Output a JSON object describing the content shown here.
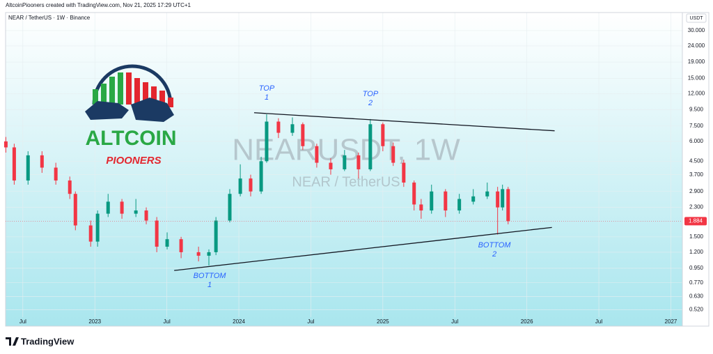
{
  "header": {
    "credit": "AltcoinPiooners created with TradingView.com, Nov 21, 2025 17:29 UTC+1",
    "symbol": "NEAR / TetherUS · 1W · Binance",
    "currency": "USDT"
  },
  "watermark": {
    "title": "NEARUSDT, 1W",
    "subtitle": "NEAR / TetherUS"
  },
  "logo": {
    "title": "ALTCOIN",
    "subtitle": "PIOONERS"
  },
  "footer": {
    "brand": "TradingView"
  },
  "chart_data": {
    "type": "candlestick",
    "log_scale": true,
    "grid": true,
    "up_color": "#089981",
    "down_color": "#f23645",
    "xlim": [
      2022.38,
      2027.08
    ],
    "xticks": [
      {
        "value": 2022.5,
        "label": "Jul"
      },
      {
        "value": 2023,
        "label": "2023"
      },
      {
        "value": 2023.5,
        "label": "Jul"
      },
      {
        "value": 2024,
        "label": "2024"
      },
      {
        "value": 2024.5,
        "label": "Jul"
      },
      {
        "value": 2025,
        "label": "2025"
      },
      {
        "value": 2025.5,
        "label": "Jul"
      },
      {
        "value": 2026,
        "label": "2026"
      },
      {
        "value": 2026.5,
        "label": "Jul"
      },
      {
        "value": 2027,
        "label": "2027"
      }
    ],
    "ylim": [
      0.41,
      39
    ],
    "yticks": [
      {
        "value": 30,
        "label": "30.000"
      },
      {
        "value": 24,
        "label": "24.000"
      },
      {
        "value": 19,
        "label": "19.000"
      },
      {
        "value": 15,
        "label": "15.000"
      },
      {
        "value": 12,
        "label": "12.000"
      },
      {
        "value": 9.5,
        "label": "9.500"
      },
      {
        "value": 7.5,
        "label": "7.500"
      },
      {
        "value": 6,
        "label": "6.000"
      },
      {
        "value": 4.5,
        "label": "4.500"
      },
      {
        "value": 3.7,
        "label": "3.700"
      },
      {
        "value": 2.9,
        "label": "2.900"
      },
      {
        "value": 2.3,
        "label": "2.300"
      },
      {
        "value": 1.5,
        "label": "1.500"
      },
      {
        "value": 1.2,
        "label": "1.200"
      },
      {
        "value": 0.95,
        "label": "0.950"
      },
      {
        "value": 0.77,
        "label": "0.770"
      },
      {
        "value": 0.63,
        "label": "0.630"
      },
      {
        "value": 0.52,
        "label": "0.520"
      }
    ],
    "candles": [
      {
        "x": 2022.382,
        "open": 6.0,
        "high": 6.4,
        "low": 5.1,
        "close": 5.5
      },
      {
        "x": 2022.44,
        "open": 5.5,
        "high": 5.8,
        "low": 3.2,
        "close": 3.4
      },
      {
        "x": 2022.536,
        "open": 3.4,
        "high": 5.2,
        "low": 3.2,
        "close": 4.9
      },
      {
        "x": 2022.633,
        "open": 4.9,
        "high": 5.2,
        "low": 3.8,
        "close": 4.1
      },
      {
        "x": 2022.729,
        "open": 4.1,
        "high": 4.4,
        "low": 3.2,
        "close": 3.4
      },
      {
        "x": 2022.826,
        "open": 3.4,
        "high": 3.6,
        "low": 2.6,
        "close": 2.8
      },
      {
        "x": 2022.865,
        "open": 2.8,
        "high": 2.9,
        "low": 1.65,
        "close": 1.77
      },
      {
        "x": 2022.971,
        "open": 1.77,
        "high": 1.9,
        "low": 1.3,
        "close": 1.4
      },
      {
        "x": 2023.019,
        "open": 1.4,
        "high": 2.2,
        "low": 1.3,
        "close": 2.1
      },
      {
        "x": 2023.092,
        "open": 2.1,
        "high": 2.8,
        "low": 2.0,
        "close": 2.5
      },
      {
        "x": 2023.188,
        "open": 2.5,
        "high": 2.6,
        "low": 1.95,
        "close": 2.1
      },
      {
        "x": 2023.285,
        "open": 2.1,
        "high": 2.6,
        "low": 2.0,
        "close": 2.2
      },
      {
        "x": 2023.357,
        "open": 2.2,
        "high": 2.3,
        "low": 1.8,
        "close": 1.9
      },
      {
        "x": 2023.43,
        "open": 1.9,
        "high": 2.0,
        "low": 1.2,
        "close": 1.3
      },
      {
        "x": 2023.502,
        "open": 1.3,
        "high": 1.6,
        "low": 1.25,
        "close": 1.45
      },
      {
        "x": 2023.599,
        "open": 1.45,
        "high": 1.5,
        "low": 1.1,
        "close": 1.2
      },
      {
        "x": 2023.72,
        "open": 1.2,
        "high": 1.3,
        "low": 1.05,
        "close": 1.14
      },
      {
        "x": 2023.792,
        "open": 1.14,
        "high": 1.25,
        "low": 0.99,
        "close": 1.2
      },
      {
        "x": 2023.841,
        "open": 1.2,
        "high": 2.0,
        "low": 1.15,
        "close": 1.9
      },
      {
        "x": 2023.937,
        "open": 1.9,
        "high": 3.0,
        "low": 1.85,
        "close": 2.8
      },
      {
        "x": 2024.01,
        "open": 2.8,
        "high": 4.3,
        "low": 2.7,
        "close": 3.5
      },
      {
        "x": 2024.082,
        "open": 3.5,
        "high": 3.7,
        "low": 2.7,
        "close": 2.9
      },
      {
        "x": 2024.155,
        "open": 2.9,
        "high": 4.8,
        "low": 2.8,
        "close": 4.5
      },
      {
        "x": 2024.193,
        "open": 4.5,
        "high": 8.9,
        "low": 4.4,
        "close": 8.0
      },
      {
        "x": 2024.275,
        "open": 8.0,
        "high": 8.4,
        "low": 6.3,
        "close": 6.8
      },
      {
        "x": 2024.372,
        "open": 6.8,
        "high": 8.5,
        "low": 6.5,
        "close": 7.7
      },
      {
        "x": 2024.444,
        "open": 7.7,
        "high": 7.9,
        "low": 5.3,
        "close": 5.6
      },
      {
        "x": 2024.541,
        "open": 5.6,
        "high": 5.8,
        "low": 4.1,
        "close": 4.4
      },
      {
        "x": 2024.638,
        "open": 4.4,
        "high": 4.7,
        "low": 3.7,
        "close": 4.0
      },
      {
        "x": 2024.734,
        "open": 4.0,
        "high": 5.3,
        "low": 3.9,
        "close": 4.9
      },
      {
        "x": 2024.831,
        "open": 4.9,
        "high": 5.1,
        "low": 3.5,
        "close": 4.0
      },
      {
        "x": 2024.913,
        "open": 4.0,
        "high": 8.3,
        "low": 3.9,
        "close": 7.7
      },
      {
        "x": 2025.0,
        "open": 7.7,
        "high": 7.9,
        "low": 5.2,
        "close": 5.6
      },
      {
        "x": 2025.072,
        "open": 5.6,
        "high": 5.9,
        "low": 4.2,
        "close": 4.4
      },
      {
        "x": 2025.145,
        "open": 4.4,
        "high": 4.6,
        "low": 3.1,
        "close": 3.3
      },
      {
        "x": 2025.217,
        "open": 3.3,
        "high": 3.4,
        "low": 2.2,
        "close": 2.4
      },
      {
        "x": 2025.266,
        "open": 2.4,
        "high": 2.6,
        "low": 1.95,
        "close": 2.2
      },
      {
        "x": 2025.338,
        "open": 2.2,
        "high": 3.2,
        "low": 2.1,
        "close": 2.9
      },
      {
        "x": 2025.435,
        "open": 2.9,
        "high": 3.0,
        "low": 2.0,
        "close": 2.2
      },
      {
        "x": 2025.531,
        "open": 2.2,
        "high": 2.8,
        "low": 2.1,
        "close": 2.6
      },
      {
        "x": 2025.628,
        "open": 2.5,
        "high": 3.0,
        "low": 2.4,
        "close": 2.7
      },
      {
        "x": 2025.725,
        "open": 2.7,
        "high": 3.3,
        "low": 2.6,
        "close": 2.9
      },
      {
        "x": 2025.797,
        "open": 2.9,
        "high": 3.1,
        "low": 1.55,
        "close": 2.3
      },
      {
        "x": 2025.831,
        "open": 2.3,
        "high": 3.2,
        "low": 2.2,
        "close": 3.0
      },
      {
        "x": 2025.87,
        "open": 3.0,
        "high": 3.1,
        "low": 1.8,
        "close": 1.884
      }
    ],
    "trendlines": [
      {
        "x": [
          2024.106,
          2026.193
        ],
        "y": [
          9.1,
          7.0
        ]
      },
      {
        "x": [
          2023.551,
          2026.174
        ],
        "y": [
          0.92,
          1.72
        ]
      }
    ],
    "annotations": [
      {
        "text": "TOP",
        "sub": "1"
      },
      {
        "text": "TOP",
        "sub": "2"
      },
      {
        "text": "BOTTOM",
        "sub": "1"
      },
      {
        "text": "BOTTOM",
        "sub": "2"
      }
    ]
  }
}
